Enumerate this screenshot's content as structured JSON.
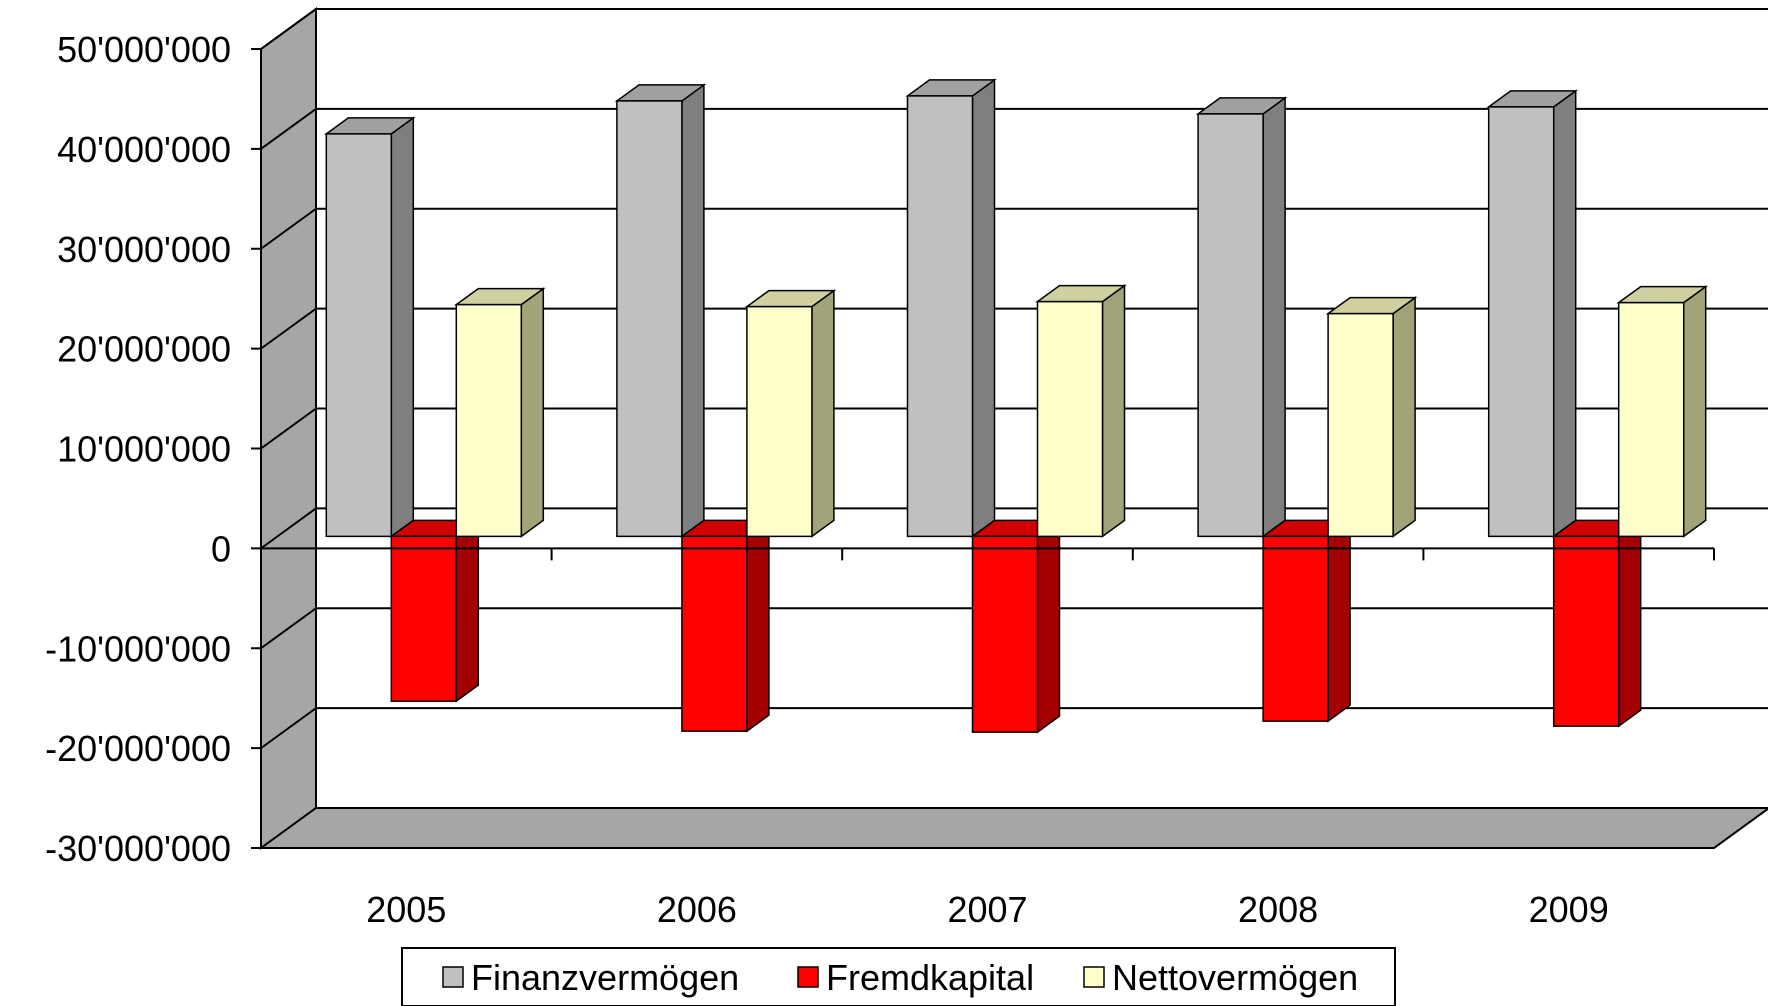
{
  "chart_data": {
    "type": "bar",
    "title": "",
    "xlabel": "",
    "ylabel": "",
    "categories": [
      "2005",
      "2006",
      "2007",
      "2008",
      "2009"
    ],
    "series": [
      {
        "name": "Finanzvermögen",
        "values": [
          40300000,
          43600000,
          44100000,
          42300000,
          43000000
        ],
        "color": "#C0C0C0",
        "side_color": "#7F7F7F",
        "top_color": "#A0A0A0"
      },
      {
        "name": "Fremdkapital",
        "values": [
          -16500000,
          -19500000,
          -19600000,
          -18500000,
          -19000000
        ],
        "color": "#FF0000",
        "side_color": "#A50000",
        "top_color": "#D00000"
      },
      {
        "name": "Nettovermögen",
        "values": [
          23200000,
          23000000,
          23500000,
          22300000,
          23400000
        ],
        "color": "#FFFFCC",
        "side_color": "#A3A37A",
        "top_color": "#CFCF9F"
      }
    ],
    "ylim": [
      -30000000,
      50000000
    ],
    "yticks": [
      50000000,
      40000000,
      30000000,
      20000000,
      10000000,
      0,
      -10000000,
      -20000000,
      -30000000
    ],
    "ytick_labels": [
      "50'000'000",
      "40'000'000",
      "30'000'000",
      "20'000'000",
      "10'000'000",
      "0",
      "-10'000'000",
      "-20'000'000",
      "-30'000'000"
    ],
    "grid": true,
    "legend_position": "bottom",
    "style": "3d-clustered-column",
    "wall_color": "#FFFFFF",
    "floor_color": "#A6A6A6",
    "side_wall_color": "#A6A6A6"
  }
}
